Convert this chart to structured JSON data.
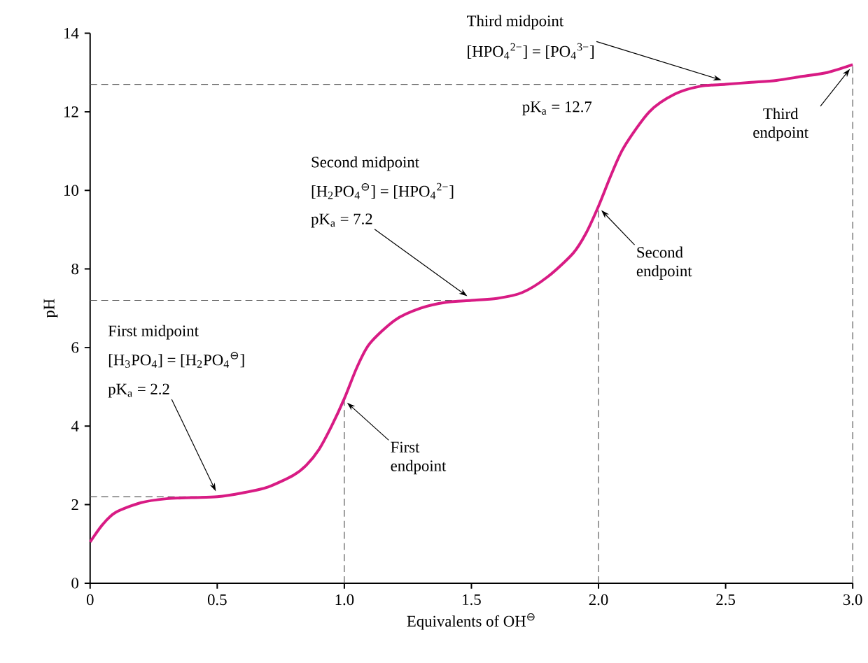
{
  "chart_data": {
    "type": "line",
    "xlabel": "Equivalents of OH$^{⊖}$",
    "ylabel": "pH",
    "x": [
      0,
      0.05,
      0.1,
      0.2,
      0.3,
      0.4,
      0.5,
      0.6,
      0.7,
      0.8,
      0.85,
      0.9,
      0.95,
      1.0,
      1.05,
      1.1,
      1.2,
      1.3,
      1.4,
      1.5,
      1.6,
      1.7,
      1.8,
      1.9,
      1.95,
      2.0,
      2.05,
      2.1,
      2.2,
      2.3,
      2.4,
      2.5,
      2.6,
      2.7,
      2.8,
      2.9,
      3.0
    ],
    "series": [
      {
        "color": "#d81b84",
        "values": [
          1.05,
          1.5,
          1.8,
          2.05,
          2.15,
          2.18,
          2.2,
          2.3,
          2.45,
          2.75,
          3.0,
          3.4,
          4.0,
          4.7,
          5.5,
          6.1,
          6.7,
          7.0,
          7.15,
          7.2,
          7.25,
          7.4,
          7.8,
          8.4,
          8.9,
          9.6,
          10.4,
          11.1,
          12.0,
          12.45,
          12.65,
          12.7,
          12.75,
          12.8,
          12.9,
          13.0,
          13.2
        ]
      }
    ],
    "xlim": [
      0,
      3
    ],
    "ylim": [
      0,
      14
    ],
    "xticks": [
      0,
      0.5,
      {
        "value": 1,
        "label": "1.0"
      },
      1.5,
      {
        "value": 2,
        "label": "2.0"
      },
      2.5,
      {
        "value": 3,
        "label": "3.0"
      }
    ],
    "yticks": [
      0,
      2,
      4,
      6,
      8,
      10,
      12,
      14
    ],
    "marker": "none",
    "line_style": "solid",
    "ref_lines": [
      {
        "axis": "y",
        "value": 2.2,
        "line_style": "dashed"
      },
      {
        "axis": "y",
        "value": 7.2,
        "line_style": "dashed"
      },
      {
        "axis": "y",
        "value": 12.7,
        "line_style": "dashed"
      },
      {
        "axis": "x",
        "value": 1,
        "line_style": "dashed"
      },
      {
        "axis": "x",
        "value": 2,
        "line_style": "dashed"
      },
      {
        "axis": "x",
        "value": 3,
        "line_style": "dashed"
      }
    ],
    "annotations": [
      "First midpoint",
      "[H$_{3}$PO$_{4}$] = [H$_{2}$PO$_{4}$$^{⊖}$]",
      {
        "text": "pK$_{a}$ = 2.2",
        "x": 0.5,
        "y": 2.2
      },
      {
        "text": "First endpoint",
        "x": 1.0,
        "y": 4.7
      },
      "Second midpoint",
      "[H$_{2}$PO$_{4}$$^{⊖}$] = [HPO$_{4}$$^{2−}$]",
      {
        "text": "pK$_{a}$ = 7.2",
        "x": 1.5,
        "y": 7.2
      },
      {
        "text": "Second endpoint",
        "x": 2.0,
        "y": 9.6
      },
      "Third midpoint",
      {
        "text": "[HPO$_{4}$$^{2−}$] = [PO$_{4}$$^{3−}$]",
        "x": 2.5,
        "y": 12.7
      },
      "pK$_{a}$ = 12.7",
      {
        "text": "Third endpoint",
        "x": 3.0,
        "y": 13.2
      }
    ]
  }
}
